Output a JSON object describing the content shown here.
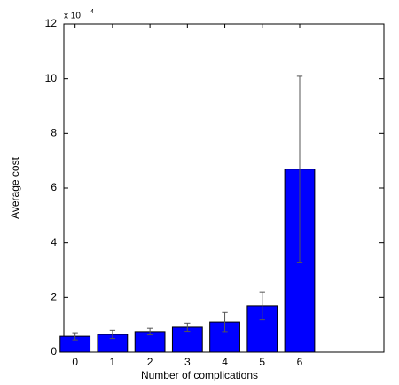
{
  "chart_data": {
    "type": "bar",
    "x_label": "Number of complications",
    "y_label": "Average cost",
    "y_multiplier": {
      "base": "x 10",
      "exponent": "4"
    },
    "x": [
      0,
      1,
      2,
      3,
      4,
      5,
      6
    ],
    "values": [
      0.58,
      0.65,
      0.75,
      0.91,
      1.1,
      1.69,
      6.69
    ],
    "errors": [
      0.13,
      0.15,
      0.12,
      0.15,
      0.35,
      0.51,
      3.4
    ],
    "color": "#0000ff",
    "error_color": "#555555",
    "xlim": [
      -0.3,
      8.25
    ],
    "xticks": [
      0,
      1,
      2,
      3,
      4,
      5,
      6
    ],
    "ylim": [
      0,
      12
    ],
    "yticks": [
      0,
      2,
      4,
      6,
      8,
      10,
      12
    ],
    "grid": false
  }
}
